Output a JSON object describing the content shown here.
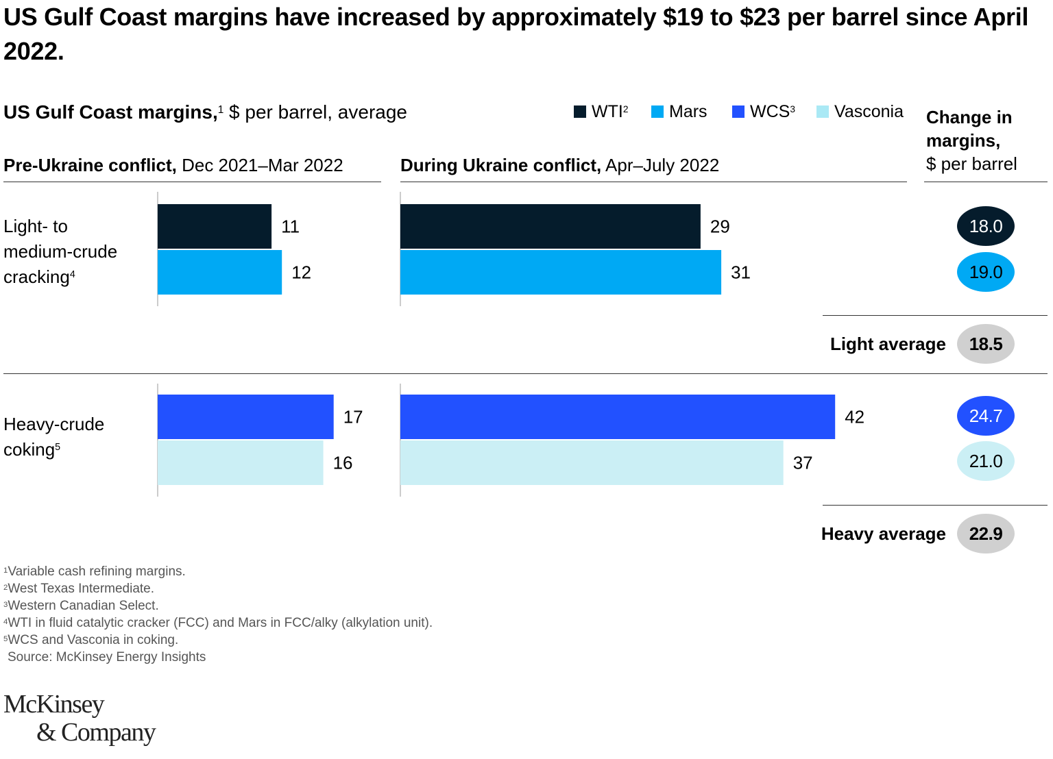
{
  "title": "US Gulf Coast margins have increased by approximately $19 to $23 per barrel since April 2022.",
  "subtitle": {
    "bold": "US Gulf Coast margins,",
    "sup": "1",
    "rest": " $ per barrel, average"
  },
  "legend": [
    {
      "name": "WTI",
      "sup": "2",
      "color": "#051c2c"
    },
    {
      "name": "Mars",
      "sup": "",
      "color": "#00a9f4"
    },
    {
      "name": "WCS",
      "sup": "3",
      "color": "#2251ff"
    },
    {
      "name": "Vasconia",
      "sup": "",
      "color": "#aae9f5"
    }
  ],
  "change_header": {
    "line1": "Change in",
    "line2": "margins,",
    "line3": "$ per barrel"
  },
  "columns": {
    "pre": {
      "bold": "Pre-Ukraine conflict,",
      "rest": " Dec 2021–Mar 2022"
    },
    "during": {
      "bold": "During Ukraine conflict,",
      "rest": " Apr–July 2022"
    }
  },
  "groups": {
    "light": {
      "label_lines": [
        "Light- to",
        "medium-crude"
      ],
      "label_last": "cracking",
      "sup": "4",
      "average_label": "Light average",
      "average": "18.5"
    },
    "heavy": {
      "label_lines": [
        "Heavy-crude"
      ],
      "label_last": "coking",
      "sup": "5",
      "average_label": "Heavy average",
      "average": "22.9"
    }
  },
  "chart_data": {
    "type": "bar",
    "orientation": "horizontal",
    "title": "US Gulf Coast margins, $ per barrel, average",
    "periods": [
      "Pre-Ukraine conflict, Dec 2021–Mar 2022",
      "During Ukraine conflict, Apr–July 2022"
    ],
    "series": [
      {
        "name": "WTI",
        "group": "Light- to medium-crude cracking",
        "color": "#051c2c",
        "pre": 11,
        "during": 29,
        "change": "18.0",
        "change_text_color": "#ffffff"
      },
      {
        "name": "Mars",
        "group": "Light- to medium-crude cracking",
        "color": "#00a9f4",
        "pre": 12,
        "during": 31,
        "change": "19.0",
        "change_text_color": "#000000"
      },
      {
        "name": "WCS",
        "group": "Heavy-crude coking",
        "color": "#2251ff",
        "pre": 17,
        "during": 42,
        "change": "24.7",
        "change_text_color": "#ffffff"
      },
      {
        "name": "Vasconia",
        "group": "Heavy-crude coking",
        "color": "#cbeff5",
        "pre": 16,
        "during": 37,
        "change": "21.0",
        "change_text_color": "#000000"
      }
    ],
    "averages": [
      {
        "label": "Light average",
        "value": "18.5"
      },
      {
        "label": "Heavy average",
        "value": "22.9"
      }
    ],
    "average_pill_color": "#d0d0d0"
  },
  "footnotes": [
    {
      "sup": "1",
      "text": "Variable cash refining margins."
    },
    {
      "sup": "2",
      "text": "West Texas Intermediate."
    },
    {
      "sup": "3",
      "text": "Western Canadian Select."
    },
    {
      "sup": "4",
      "text": "WTI in fluid catalytic cracker (FCC) and Mars in FCC/alky (alkylation unit)."
    },
    {
      "sup": "5",
      "text": "WCS and Vasconia in coking."
    }
  ],
  "source": "Source: McKinsey Energy Insights",
  "logo": {
    "line1": "McKinsey",
    "line2": "& Company"
  }
}
